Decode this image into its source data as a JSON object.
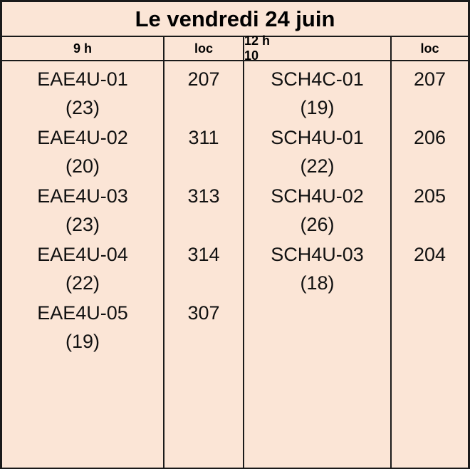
{
  "title": "Le vendredi 24 juin",
  "headers": {
    "time1": "9 h",
    "loc1": "loc",
    "time2": "12 h 10",
    "loc2": "loc"
  },
  "session1": [
    {
      "course": "EAE4U-01",
      "count": "(23)",
      "room": "207"
    },
    {
      "course": "EAE4U-02",
      "count": "(20)",
      "room": "311"
    },
    {
      "course": "EAE4U-03",
      "count": "(23)",
      "room": "313"
    },
    {
      "course": "EAE4U-04",
      "count": "(22)",
      "room": "314"
    },
    {
      "course": "EAE4U-05",
      "count": "(19)",
      "room": "307"
    }
  ],
  "session2": [
    {
      "course": "SCH4C-01",
      "count": "(19)",
      "room": "207"
    },
    {
      "course": "SCH4U-01",
      "count": "(22)",
      "room": "206"
    },
    {
      "course": "SCH4U-02",
      "count": "(26)",
      "room": "205"
    },
    {
      "course": "SCH4U-03",
      "count": "(18)",
      "room": "204"
    }
  ]
}
